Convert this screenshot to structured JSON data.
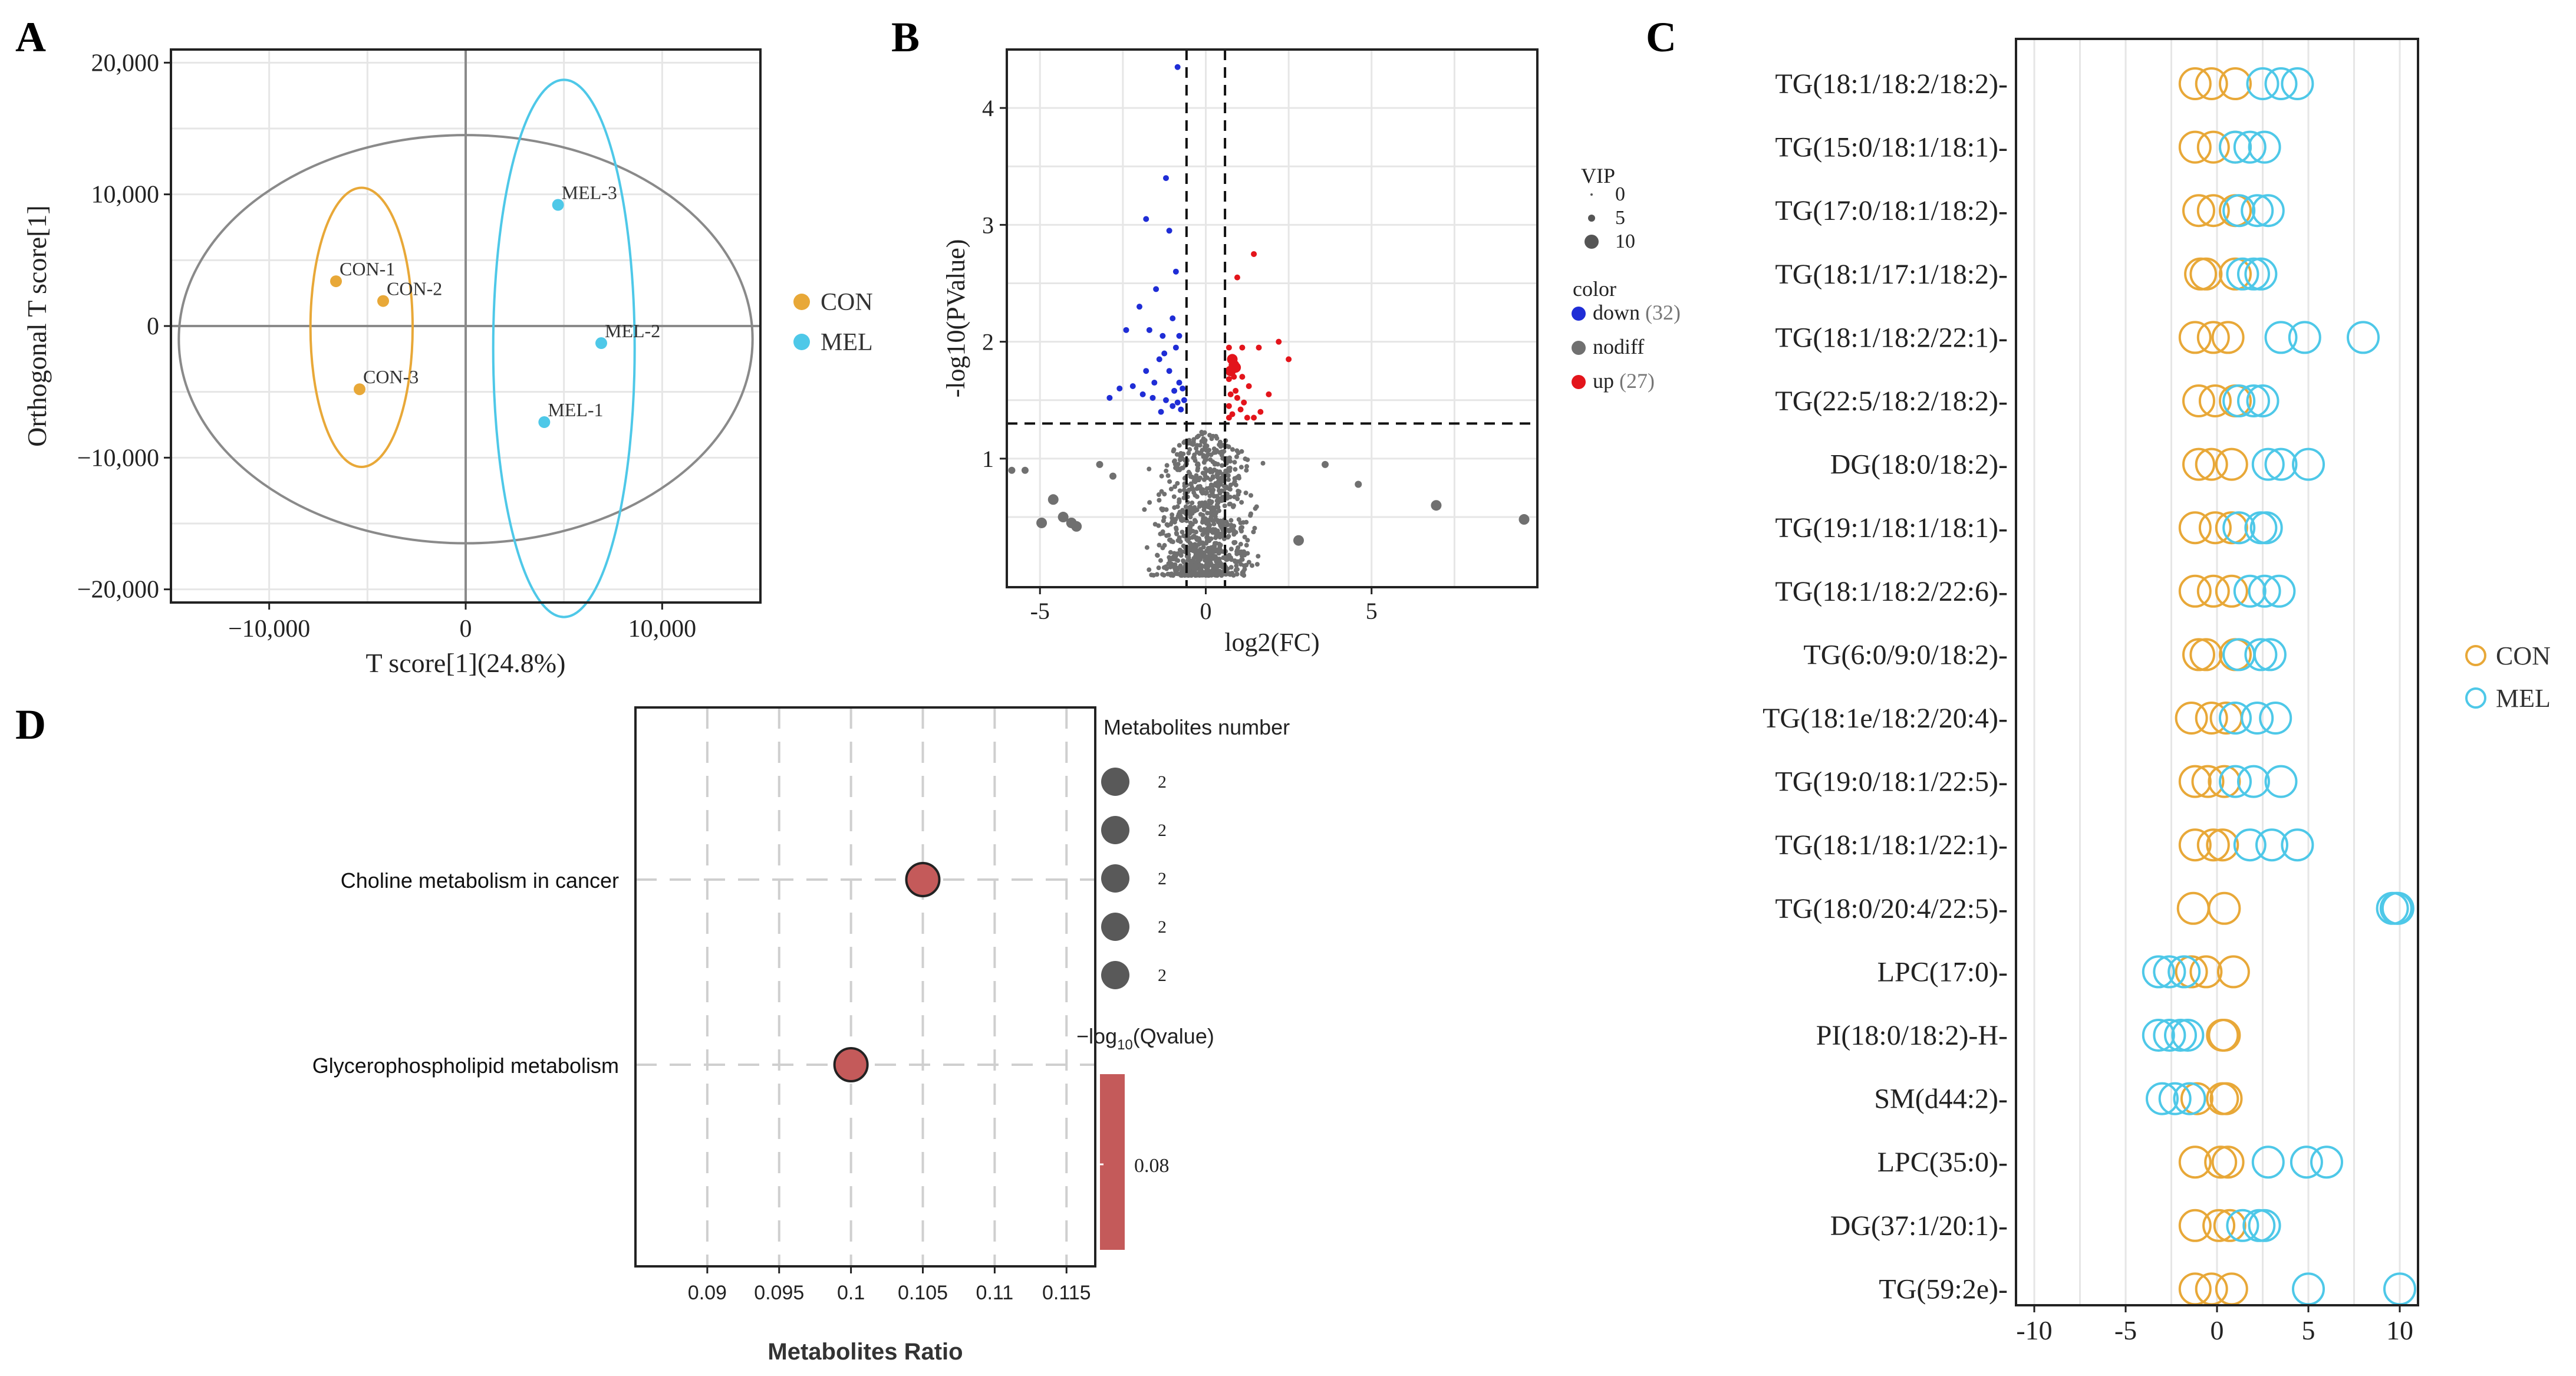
{
  "colors": {
    "con": "#E8A838",
    "mel": "#4EC8E8",
    "down": "#1f2dd6",
    "nodiff": "#707070",
    "up": "#e3141b",
    "bubble": "#c45a5a",
    "grid": "#e6e6e6"
  },
  "panels": {
    "a": "A",
    "b": "B",
    "c": "C",
    "d": "D"
  },
  "chart_data": [
    {
      "type": "scatter",
      "panel": "A",
      "xlabel": "T score[1](24.8%)",
      "ylabel": "Orthogonal T score[1]",
      "xlim": [
        -15000,
        15000
      ],
      "ylim": [
        -21000,
        21000
      ],
      "xticks": [
        -10000,
        0,
        10000
      ],
      "xtick_labels": [
        "−10,000",
        "0",
        "10,000"
      ],
      "yticks": [
        20000,
        10000,
        0,
        -10000,
        -20000
      ],
      "ytick_labels": [
        "20,000",
        "10,000",
        "0",
        "−10,000",
        "−20,000"
      ],
      "legend": [
        {
          "name": "CON",
          "color": "#E8A838"
        },
        {
          "name": "MEL",
          "color": "#4EC8E8"
        }
      ],
      "points": [
        {
          "label": "CON-1",
          "group": "CON",
          "x": -6600,
          "y": 3400
        },
        {
          "label": "CON-2",
          "group": "CON",
          "x": -4200,
          "y": 1900
        },
        {
          "label": "CON-3",
          "group": "CON",
          "x": -5400,
          "y": -4800
        },
        {
          "label": "MEL-3",
          "group": "MEL",
          "x": 4700,
          "y": 9200
        },
        {
          "label": "MEL-2",
          "group": "MEL",
          "x": 6900,
          "y": -1300
        },
        {
          "label": "MEL-1",
          "group": "MEL",
          "x": 4000,
          "y": -7300
        }
      ],
      "ellipses": [
        {
          "group": "all",
          "cx": 0,
          "cy": -1000,
          "rx": 14600,
          "ry": 15500
        },
        {
          "group": "CON",
          "cx": -5300,
          "cy": -100,
          "rx": 2600,
          "ry": 10600
        },
        {
          "group": "MEL",
          "cx": 5000,
          "cy": -1700,
          "rx": 3600,
          "ry": 20400
        }
      ]
    },
    {
      "type": "scatter",
      "panel": "B",
      "xlabel": "log2(FC)",
      "ylabel": "-log10(PValue)",
      "xlim": [
        -6,
        10
      ],
      "ylim": [
        -0.1,
        4.5
      ],
      "xticks": [
        -5,
        0,
        5
      ],
      "yticks": [
        1,
        2,
        3,
        4
      ],
      "thresholds": {
        "x": [
          -0.58,
          0.58
        ],
        "y": 1.3
      },
      "legend_vip": {
        "title": "VIP",
        "values": [
          "0",
          "5",
          "10"
        ]
      },
      "legend_color": {
        "title": "color",
        "items": [
          {
            "name": "down",
            "count": "(32)",
            "color": "#1f2dd6"
          },
          {
            "name": "nodiff",
            "count": "",
            "color": "#707070"
          },
          {
            "name": "up",
            "count": "(27)",
            "color": "#e3141b"
          }
        ]
      },
      "down": [
        [
          -0.85,
          4.35
        ],
        [
          -1.2,
          3.4
        ],
        [
          -1.8,
          3.05
        ],
        [
          -1.1,
          2.95
        ],
        [
          -0.9,
          2.6
        ],
        [
          -1.5,
          2.45
        ],
        [
          -2.0,
          2.3
        ],
        [
          -1.0,
          2.2
        ],
        [
          -2.4,
          2.1
        ],
        [
          -1.7,
          2.1
        ],
        [
          -1.3,
          2.05
        ],
        [
          -0.9,
          1.95
        ],
        [
          -2.6,
          1.6
        ],
        [
          -1.4,
          1.85
        ],
        [
          -1.1,
          1.75
        ],
        [
          -0.8,
          1.65
        ],
        [
          -1.9,
          1.55
        ],
        [
          -1.6,
          1.52
        ],
        [
          -1.2,
          1.5
        ],
        [
          -0.85,
          1.48
        ],
        [
          -2.2,
          1.62
        ],
        [
          -0.7,
          1.6
        ],
        [
          -1.0,
          1.45
        ],
        [
          -1.35,
          1.4
        ],
        [
          -0.75,
          1.42
        ],
        [
          -1.55,
          1.65
        ],
        [
          -0.95,
          1.58
        ],
        [
          -2.9,
          1.52
        ],
        [
          -1.8,
          1.75
        ],
        [
          -0.65,
          1.5
        ],
        [
          -1.25,
          1.9
        ],
        [
          -0.8,
          2.05
        ]
      ],
      "up": [
        [
          1.45,
          2.75
        ],
        [
          0.95,
          2.55
        ],
        [
          0.8,
          1.85
        ],
        [
          0.85,
          1.8
        ],
        [
          0.9,
          1.78
        ],
        [
          0.75,
          1.75
        ],
        [
          1.1,
          1.95
        ],
        [
          0.7,
          1.95
        ],
        [
          2.2,
          2.0
        ],
        [
          1.6,
          1.95
        ],
        [
          0.85,
          1.7
        ],
        [
          1.3,
          1.62
        ],
        [
          0.7,
          1.68
        ],
        [
          0.95,
          1.52
        ],
        [
          1.15,
          1.48
        ],
        [
          0.7,
          1.45
        ],
        [
          1.9,
          1.55
        ],
        [
          1.05,
          1.42
        ],
        [
          0.8,
          1.38
        ],
        [
          1.45,
          1.35
        ],
        [
          0.7,
          1.35
        ],
        [
          1.25,
          1.35
        ],
        [
          0.9,
          1.58
        ],
        [
          1.65,
          1.4
        ],
        [
          0.75,
          1.55
        ],
        [
          1.1,
          1.7
        ],
        [
          2.5,
          1.85
        ]
      ],
      "nodiff_outliers": [
        [
          -5.85,
          0.9
        ],
        [
          -5.45,
          0.9
        ],
        [
          -4.95,
          0.45
        ],
        [
          -4.3,
          0.5
        ],
        [
          -4.05,
          0.45
        ],
        [
          -3.9,
          0.42
        ],
        [
          6.95,
          0.6
        ],
        [
          9.6,
          0.48
        ],
        [
          -3.2,
          0.95
        ],
        [
          -2.8,
          0.85
        ],
        [
          3.6,
          0.95
        ],
        [
          4.6,
          0.78
        ],
        [
          -4.6,
          0.65
        ],
        [
          2.8,
          0.3
        ]
      ]
    },
    {
      "type": "scatter",
      "panel": "C",
      "xlim": [
        -11,
        11
      ],
      "xticks": [
        -10,
        -5,
        0,
        5,
        10
      ],
      "legend": [
        {
          "name": "CON",
          "color": "#E8A838"
        },
        {
          "name": "MEL",
          "color": "#4EC8E8"
        }
      ],
      "rows": [
        {
          "label": "TG(18:1/18:2/18:2)-",
          "con": [
            -1.2,
            -0.3,
            1.0
          ],
          "mel": [
            2.5,
            3.5,
            4.4
          ]
        },
        {
          "label": "TG(15:0/18:1/18:1)-",
          "con": [
            -1.2,
            -0.2,
            1.0
          ],
          "mel": [
            1.0,
            1.8,
            2.6
          ]
        },
        {
          "label": "TG(17:0/18:1/18:2)-",
          "con": [
            -1.0,
            -0.2,
            1.0
          ],
          "mel": [
            1.2,
            2.2,
            2.8
          ]
        },
        {
          "label": "TG(18:1/17:1/18:2)-",
          "con": [
            -0.9,
            -0.6,
            1.0
          ],
          "mel": [
            1.4,
            2.0,
            2.4
          ]
        },
        {
          "label": "TG(18:1/18:2/22:1)-",
          "con": [
            -1.2,
            -0.2,
            0.6
          ],
          "mel": [
            3.5,
            4.8,
            8.0
          ]
        },
        {
          "label": "TG(22:5/18:2/18:2)-",
          "con": [
            -1.0,
            -0.1,
            1.0
          ],
          "mel": [
            1.2,
            2.0,
            2.5
          ]
        },
        {
          "label": "DG(18:0/18:2)-",
          "con": [
            -1.0,
            -0.3,
            0.8
          ],
          "mel": [
            2.8,
            3.5,
            5.0
          ]
        },
        {
          "label": "TG(19:1/18:1/18:1)-",
          "con": [
            -1.2,
            -0.1,
            0.8
          ],
          "mel": [
            1.2,
            2.4,
            2.7
          ]
        },
        {
          "label": "TG(18:1/18:2/22:6)-",
          "con": [
            -1.2,
            -0.2,
            0.8
          ],
          "mel": [
            1.8,
            2.6,
            3.4
          ]
        },
        {
          "label": "TG(6:0/9:0/18:2)-",
          "con": [
            -1.0,
            -0.6,
            1.0
          ],
          "mel": [
            1.2,
            2.4,
            2.9
          ]
        },
        {
          "label": "TG(18:1e/18:2/20:4)-",
          "con": [
            -1.4,
            -0.3,
            0.5
          ],
          "mel": [
            1.0,
            2.2,
            3.2
          ]
        },
        {
          "label": "TG(19:0/18:1/22:5)-",
          "con": [
            -1.2,
            -0.5,
            0.4
          ],
          "mel": [
            1.0,
            2.0,
            3.5
          ]
        },
        {
          "label": "TG(18:1/18:1/22:1)-",
          "con": [
            -1.2,
            -0.2,
            0.3
          ],
          "mel": [
            1.8,
            3.0,
            4.4
          ]
        },
        {
          "label": "TG(18:0/20:4/22:5)-",
          "con": [
            -1.3,
            0.4
          ],
          "mel": [
            9.6,
            9.8,
            9.9
          ]
        },
        {
          "label": "LPC(17:0)-",
          "con": [
            -1.4,
            -0.6,
            0.9
          ],
          "mel": [
            -3.2,
            -2.6,
            -1.8
          ]
        },
        {
          "label": "PI(18:0/18:2)-H-",
          "con": [
            0.3,
            0.4
          ],
          "mel": [
            -3.2,
            -2.6,
            -2.0,
            -1.6
          ]
        },
        {
          "label": "SM(d44:2)-",
          "con": [
            -1.1,
            0.3,
            0.5
          ],
          "mel": [
            -3.0,
            -2.3,
            -1.5
          ]
        },
        {
          "label": "LPC(35:0)-",
          "con": [
            -1.2,
            0.2,
            0.6
          ],
          "mel": [
            2.8,
            4.9,
            6.0
          ]
        },
        {
          "label": "DG(37:1/20:1)-",
          "con": [
            -1.2,
            0.1,
            0.7
          ],
          "mel": [
            1.4,
            2.3,
            2.6
          ]
        },
        {
          "label": "TG(59:2e)-",
          "con": [
            -1.2,
            -0.3,
            0.8
          ],
          "mel": [
            5.0,
            10.0
          ]
        }
      ]
    },
    {
      "type": "scatter",
      "panel": "D",
      "xlabel": "Metabolites Ratio",
      "xlim": [
        0.085,
        0.117
      ],
      "xticks": [
        0.09,
        0.095,
        0.1,
        0.105,
        0.11,
        0.115
      ],
      "xtick_labels": [
        "0.09",
        "0.095",
        "0.1",
        "0.105",
        "0.11",
        "0.115"
      ],
      "points": [
        {
          "label": "Choline metabolism in cancer",
          "x": 0.105,
          "count": 2,
          "qvalue": 0.08
        },
        {
          "label": "Glycerophospholipid metabolism",
          "x": 0.1,
          "count": 2,
          "qvalue": 0.08
        }
      ],
      "size_legend": {
        "title": "Metabolites number",
        "values": [
          "2",
          "2",
          "2",
          "2",
          "2"
        ]
      },
      "color_legend": {
        "title_prefix": "−log",
        "title_sub": "10",
        "title_suffix": "(Qvalue)",
        "value": "0.08"
      }
    }
  ]
}
